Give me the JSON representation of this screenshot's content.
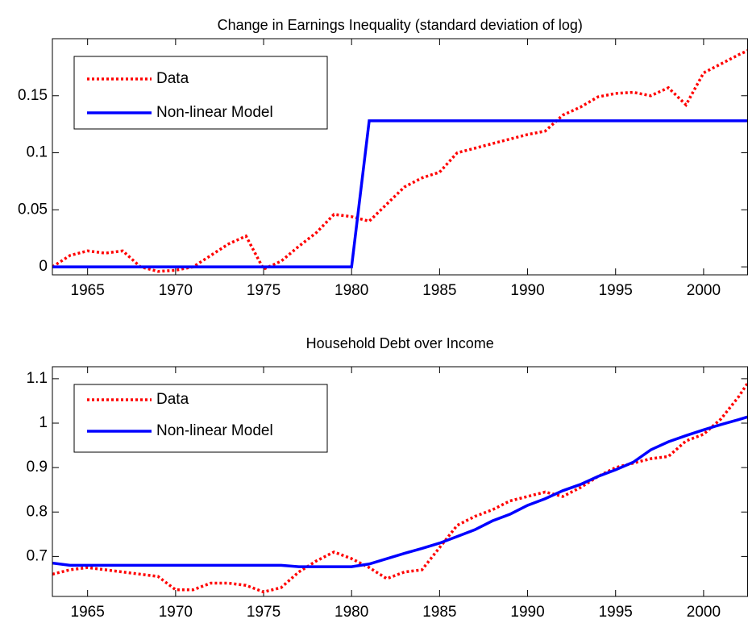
{
  "chart_data": [
    {
      "type": "line",
      "title": "Change in Earnings Inequality (standard deviation of log)",
      "x": [
        1963,
        1964,
        1965,
        1966,
        1967,
        1968,
        1969,
        1970,
        1971,
        1972,
        1973,
        1974,
        1975,
        1976,
        1977,
        1978,
        1979,
        1980,
        1981,
        1982,
        1983,
        1984,
        1985,
        1986,
        1987,
        1988,
        1989,
        1990,
        1991,
        1992,
        1993,
        1994,
        1995,
        1996,
        1997,
        1998,
        1999,
        2000,
        2001,
        2002,
        2003
      ],
      "series": [
        {
          "name": "Data",
          "color": "#ff0000",
          "linestyle": "dotted",
          "values": [
            0.0,
            0.01,
            0.014,
            0.012,
            0.014,
            0.0,
            -0.004,
            -0.003,
            0.0,
            0.01,
            0.02,
            0.027,
            -0.002,
            0.005,
            0.018,
            0.03,
            0.046,
            0.044,
            0.04,
            0.055,
            0.07,
            0.078,
            0.083,
            0.1,
            0.104,
            0.108,
            0.112,
            0.116,
            0.119,
            0.133,
            0.14,
            0.149,
            0.152,
            0.153,
            0.15,
            0.157,
            0.142,
            0.17,
            0.178,
            0.186,
            0.193
          ]
        },
        {
          "name": "Non-linear Model",
          "color": "#0000ff",
          "linestyle": "solid",
          "values": [
            0,
            0,
            0,
            0,
            0,
            0,
            0,
            0,
            0,
            0,
            0,
            0,
            0,
            0,
            0,
            0,
            0,
            0,
            0.128,
            0.128,
            0.128,
            0.128,
            0.128,
            0.128,
            0.128,
            0.128,
            0.128,
            0.128,
            0.128,
            0.128,
            0.128,
            0.128,
            0.128,
            0.128,
            0.128,
            0.128,
            0.128,
            0.128,
            0.128,
            0.128,
            0.128
          ]
        }
      ],
      "xlim": [
        1963,
        2002.5
      ],
      "xticks": [
        1965,
        1970,
        1975,
        1980,
        1985,
        1990,
        1995,
        2000
      ],
      "ylim": [
        -0.007,
        0.2
      ],
      "yticks": [
        0,
        0.05,
        0.1,
        0.15
      ],
      "legend": "upper left"
    },
    {
      "type": "line",
      "title": "Household Debt over Income",
      "x": [
        1963,
        1964,
        1965,
        1966,
        1967,
        1968,
        1969,
        1970,
        1971,
        1972,
        1973,
        1974,
        1975,
        1976,
        1977,
        1978,
        1979,
        1980,
        1981,
        1982,
        1983,
        1984,
        1985,
        1986,
        1987,
        1988,
        1989,
        1990,
        1991,
        1992,
        1993,
        1994,
        1995,
        1996,
        1997,
        1998,
        1999,
        2000,
        2001,
        2002,
        2003
      ],
      "series": [
        {
          "name": "Data",
          "color": "#ff0000",
          "linestyle": "dotted",
          "values": [
            0.66,
            0.67,
            0.675,
            0.67,
            0.665,
            0.66,
            0.655,
            0.625,
            0.625,
            0.64,
            0.64,
            0.635,
            0.62,
            0.63,
            0.665,
            0.69,
            0.71,
            0.695,
            0.675,
            0.65,
            0.665,
            0.67,
            0.72,
            0.77,
            0.79,
            0.805,
            0.825,
            0.835,
            0.845,
            0.835,
            0.855,
            0.88,
            0.9,
            0.91,
            0.92,
            0.925,
            0.96,
            0.975,
            1.01,
            1.06,
            1.12
          ]
        },
        {
          "name": "Non-linear Model",
          "color": "#0000ff",
          "linestyle": "solid",
          "values": [
            0.685,
            0.68,
            0.68,
            0.68,
            0.68,
            0.68,
            0.68,
            0.68,
            0.68,
            0.68,
            0.68,
            0.68,
            0.68,
            0.68,
            0.677,
            0.677,
            0.677,
            0.677,
            0.683,
            0.695,
            0.707,
            0.718,
            0.73,
            0.745,
            0.76,
            0.78,
            0.795,
            0.815,
            0.83,
            0.848,
            0.862,
            0.88,
            0.895,
            0.912,
            0.94,
            0.958,
            0.972,
            0.985,
            0.997,
            1.008,
            1.02
          ]
        }
      ],
      "xlim": [
        1963,
        2002.5
      ],
      "xticks": [
        1965,
        1970,
        1975,
        1980,
        1985,
        1990,
        1995,
        2000
      ],
      "ylim": [
        0.61,
        1.127
      ],
      "yticks": [
        0.7,
        0.8,
        0.9,
        1,
        1.1
      ],
      "legend": "upper left"
    }
  ]
}
